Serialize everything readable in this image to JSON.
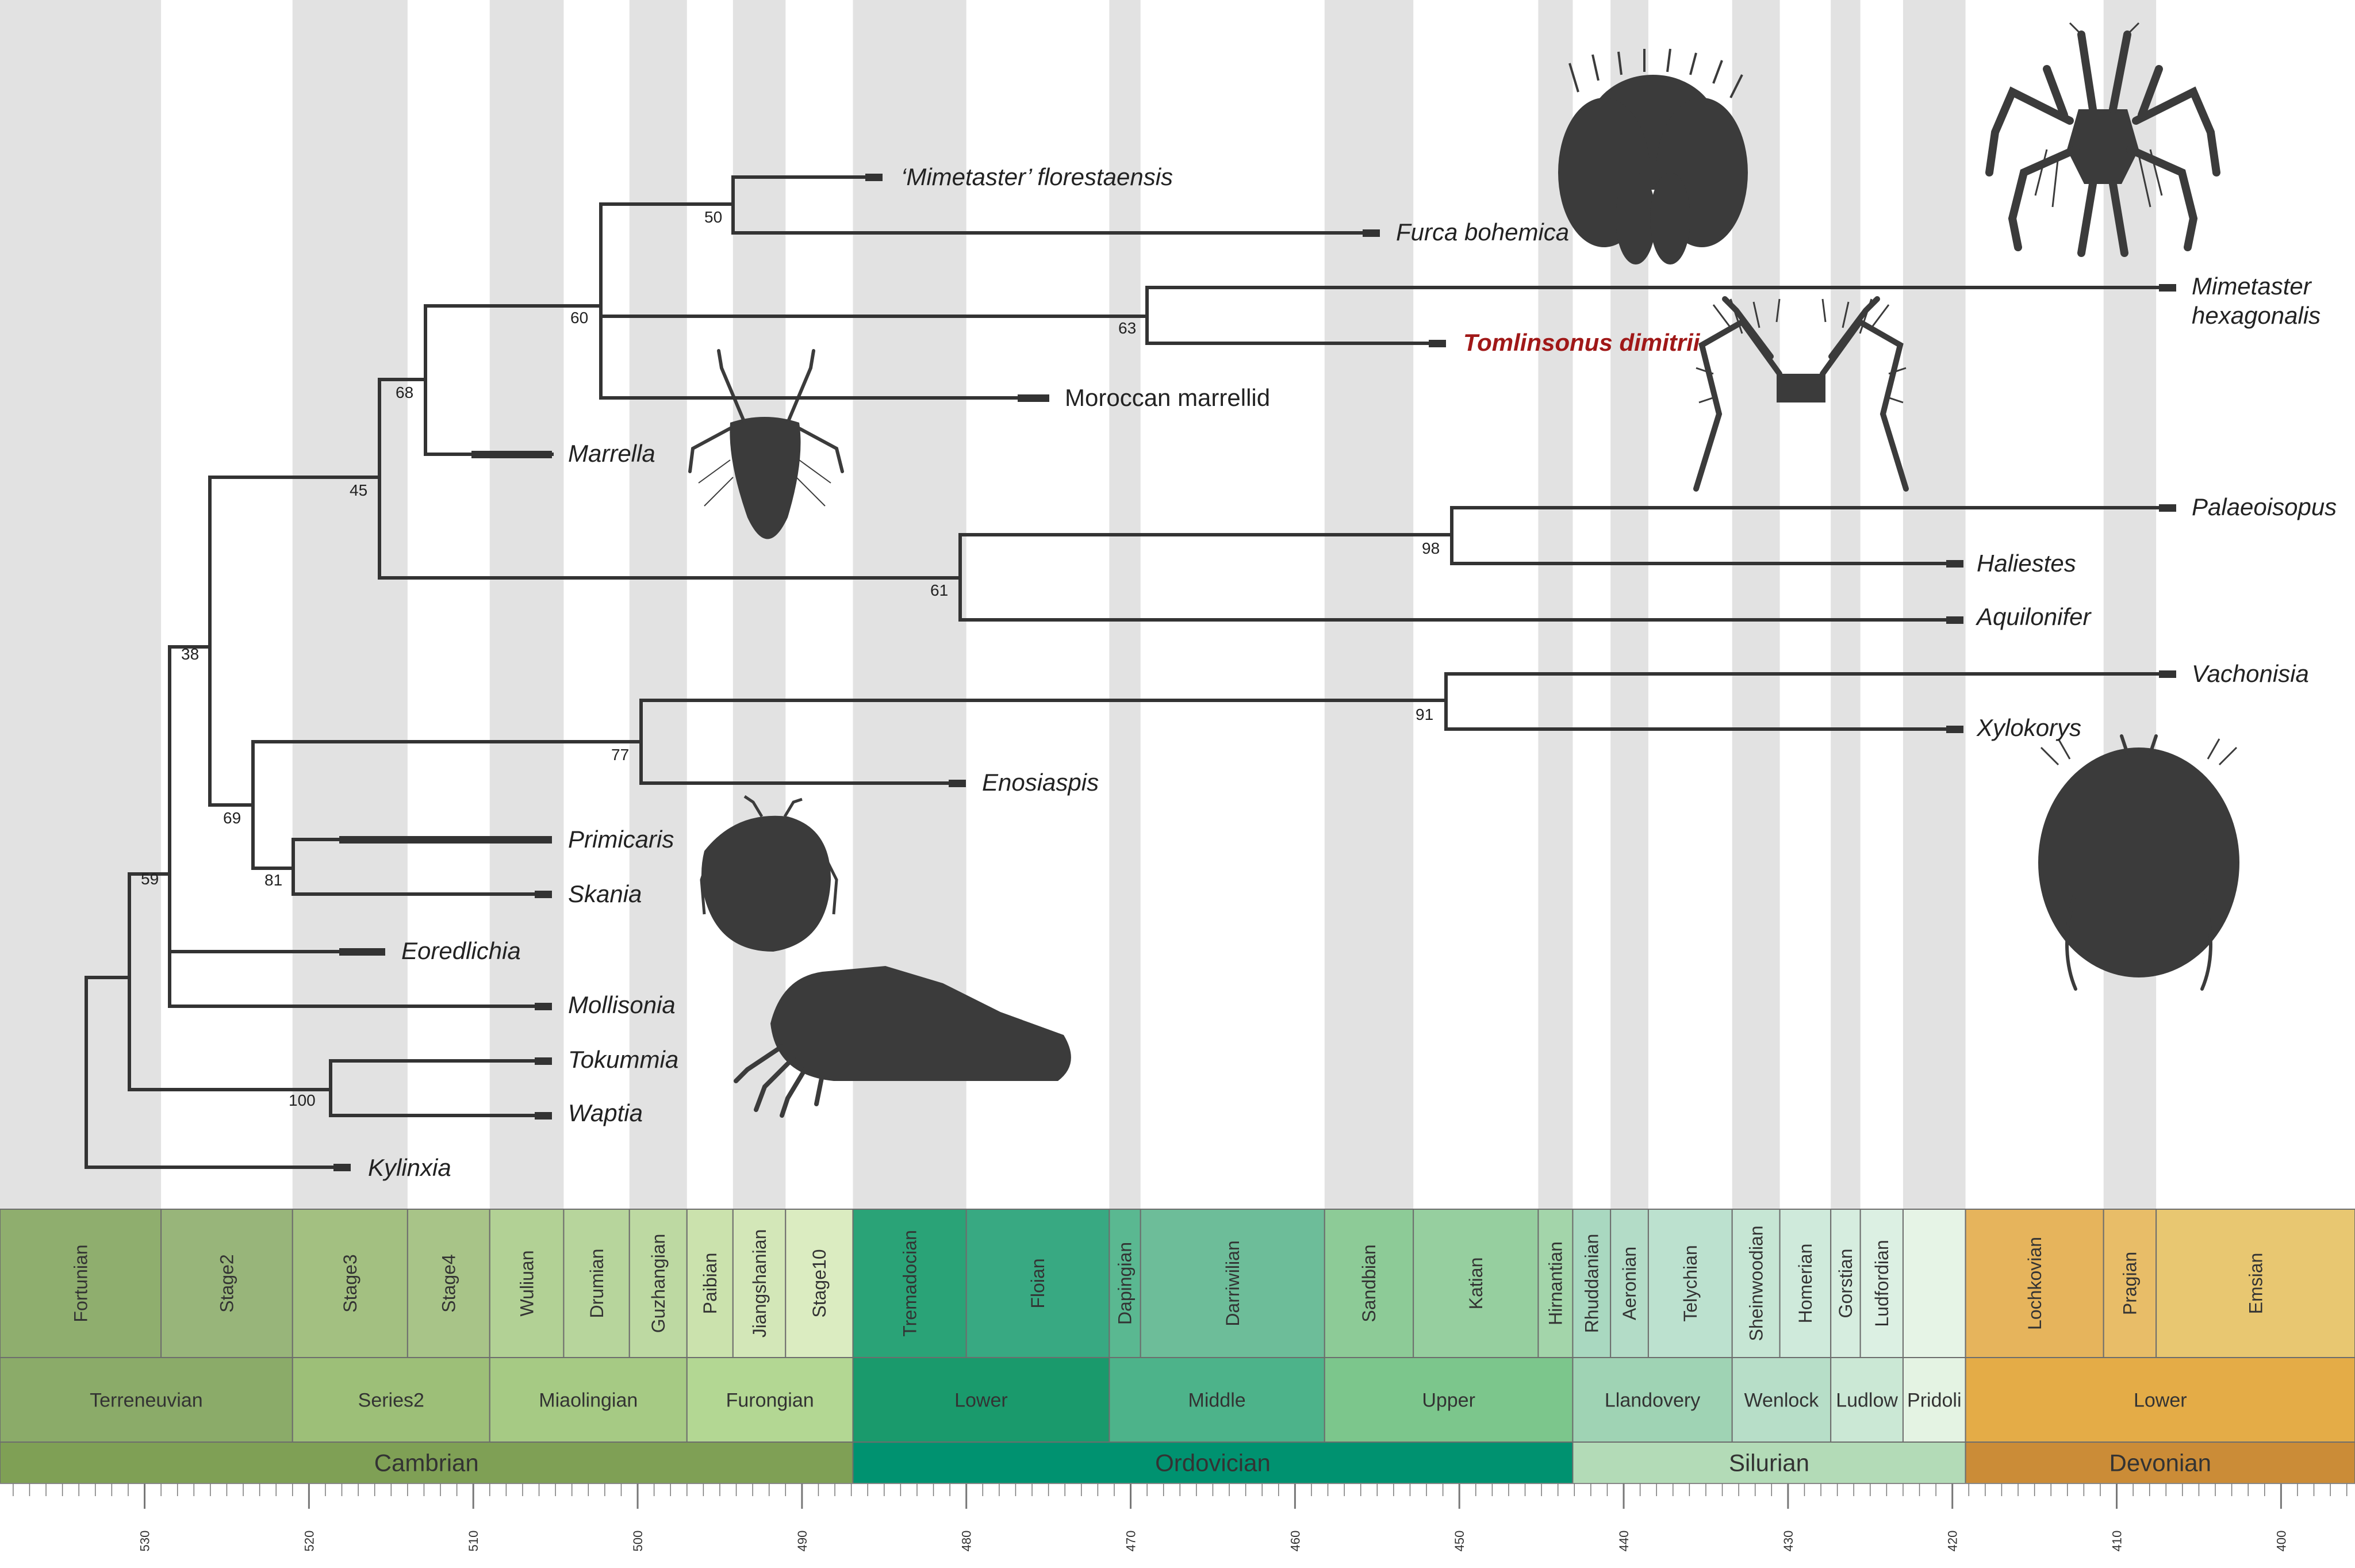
{
  "colors": {
    "branch": "#333333",
    "stripe": "#e2e2e2",
    "silhouette": "#3b3b3b",
    "highlight": "#a01818"
  },
  "taxa": [
    {
      "id": "mimetaster-florestaensis",
      "label": "‘Mimetaster’ florestaensis"
    },
    {
      "id": "furca-bohemica",
      "label": "Furca bohemica"
    },
    {
      "id": "mimetaster-hexagonalis-1",
      "label": "Mimetaster"
    },
    {
      "id": "mimetaster-hexagonalis-2",
      "label": "hexagonalis"
    },
    {
      "id": "tomlinsonus-dimitrii",
      "label": "Tomlinsonus dimitrii"
    },
    {
      "id": "moroccan-marrellid",
      "label": "Moroccan marrellid"
    },
    {
      "id": "marrella",
      "label": "Marrella"
    },
    {
      "id": "palaeoisopus",
      "label": "Palaeoisopus"
    },
    {
      "id": "haliestes",
      "label": "Haliestes"
    },
    {
      "id": "aquilonifer",
      "label": "Aquilonifer"
    },
    {
      "id": "vachonisia",
      "label": "Vachonisia"
    },
    {
      "id": "xylokorys",
      "label": "Xylokorys"
    },
    {
      "id": "enosiaspis",
      "label": "Enosiaspis"
    },
    {
      "id": "primicaris",
      "label": "Primicaris"
    },
    {
      "id": "skania",
      "label": "Skania"
    },
    {
      "id": "eoredlichia",
      "label": "Eoredlichia"
    },
    {
      "id": "mollisonia",
      "label": "Mollisonia"
    },
    {
      "id": "tokummia",
      "label": "Tokummia"
    },
    {
      "id": "waptia",
      "label": "Waptia"
    },
    {
      "id": "kylinxia",
      "label": "Kylinxia"
    }
  ],
  "support_values": [
    "50",
    "60",
    "63",
    "68",
    "45",
    "98",
    "61",
    "38",
    "91",
    "77",
    "69",
    "81",
    "59",
    "100"
  ],
  "time_scale": {
    "axis_min": 400,
    "axis_max": 538.8,
    "stages": [
      {
        "name": "Fortunian",
        "start": 538.8,
        "end": 529,
        "color": "#8fae6e"
      },
      {
        "name": "Stage2",
        "start": 529,
        "end": 521,
        "color": "#98b57a"
      },
      {
        "name": "Stage3",
        "start": 521,
        "end": 514,
        "color": "#a3c081"
      },
      {
        "name": "Stage4",
        "start": 514,
        "end": 509,
        "color": "#a8c488"
      },
      {
        "name": "Wuliuan",
        "start": 509,
        "end": 504.5,
        "color": "#b2d195"
      },
      {
        "name": "Drumian",
        "start": 504.5,
        "end": 500.5,
        "color": "#b7d59c"
      },
      {
        "name": "Guzhangian",
        "start": 500.5,
        "end": 497,
        "color": "#bdd9a2"
      },
      {
        "name": "Paibian",
        "start": 497,
        "end": 494.2,
        "color": "#cbe2ad"
      },
      {
        "name": "Jiangshanian",
        "start": 494.2,
        "end": 491,
        "color": "#d3e7b8"
      },
      {
        "name": "Stage10",
        "start": 491,
        "end": 486.9,
        "color": "#dbecc1"
      },
      {
        "name": "Tremadocian",
        "start": 486.9,
        "end": 480,
        "color": "#2aa377"
      },
      {
        "name": "Floian",
        "start": 480,
        "end": 471.3,
        "color": "#38a982"
      },
      {
        "name": "Dapingian",
        "start": 471.3,
        "end": 469.4,
        "color": "#5ab891"
      },
      {
        "name": "Darriwilian",
        "start": 469.4,
        "end": 458.2,
        "color": "#6dbd99"
      },
      {
        "name": "Sandbian",
        "start": 458.2,
        "end": 452.8,
        "color": "#8dcb97"
      },
      {
        "name": "Katian",
        "start": 452.8,
        "end": 445.2,
        "color": "#96cf9f"
      },
      {
        "name": "Hirnantian",
        "start": 445.2,
        "end": 443.1,
        "color": "#a3d5aa"
      },
      {
        "name": "Rhuddanian",
        "start": 443.1,
        "end": 440.8,
        "color": "#a9d8c0"
      },
      {
        "name": "Aeronian",
        "start": 440.8,
        "end": 438.5,
        "color": "#b3dcc7"
      },
      {
        "name": "Telychian",
        "start": 438.5,
        "end": 433.4,
        "color": "#bce1cf"
      },
      {
        "name": "Sheinwoodian",
        "start": 433.4,
        "end": 430.5,
        "color": "#c6e6d4"
      },
      {
        "name": "Homerian",
        "start": 430.5,
        "end": 427.4,
        "color": "#cfeadb"
      },
      {
        "name": "Gorstian",
        "start": 427.4,
        "end": 425.6,
        "color": "#d6eddf"
      },
      {
        "name": "Ludfordian",
        "start": 425.6,
        "end": 423,
        "color": "#dcf0e3"
      },
      {
        "name": "",
        "start": 423,
        "end": 419.2,
        "color": "#e6f4e6"
      },
      {
        "name": "Lochkovian",
        "start": 419.2,
        "end": 410.8,
        "color": "#e6b45c"
      },
      {
        "name": "Pragian",
        "start": 410.8,
        "end": 407.6,
        "color": "#e8bd68"
      },
      {
        "name": "Emsian",
        "start": 407.6,
        "end": 393.3,
        "color": "#e8c771"
      }
    ],
    "series": [
      {
        "name": "Terreneuvian",
        "start": 538.8,
        "end": 521,
        "color": "#8bab69"
      },
      {
        "name": "Series2",
        "start": 521,
        "end": 509,
        "color": "#9dbf78"
      },
      {
        "name": "Miaolingian",
        "start": 509,
        "end": 497,
        "color": "#a6ca84"
      },
      {
        "name": "Furongian",
        "start": 497,
        "end": 486.9,
        "color": "#b3d793"
      },
      {
        "name": "Lower",
        "start": 486.9,
        "end": 471.3,
        "color": "#1a9a6c"
      },
      {
        "name": "Middle",
        "start": 471.3,
        "end": 458.2,
        "color": "#4db38a"
      },
      {
        "name": "Upper",
        "start": 458.2,
        "end": 443.1,
        "color": "#7cc68c"
      },
      {
        "name": "Llandovery",
        "start": 443.1,
        "end": 433.4,
        "color": "#9fd3b4"
      },
      {
        "name": "Wenlock",
        "start": 433.4,
        "end": 427.4,
        "color": "#b7dec8"
      },
      {
        "name": "Ludlow",
        "start": 427.4,
        "end": 423,
        "color": "#cbe8d5"
      },
      {
        "name": "Pridoli",
        "start": 423,
        "end": 419.2,
        "color": "#e4f3e3"
      },
      {
        "name": "Lower",
        "start": 419.2,
        "end": 393.3,
        "color": "#e4ac47"
      }
    ],
    "periods": [
      {
        "name": "Cambrian",
        "start": 538.8,
        "end": 486.9,
        "color": "#7fa055"
      },
      {
        "name": "Ordovician",
        "start": 486.9,
        "end": 443.1,
        "color": "#009270"
      },
      {
        "name": "Silurian",
        "start": 443.1,
        "end": 419.2,
        "color": "#b3dbb7"
      },
      {
        "name": "Devonian",
        "start": 419.2,
        "end": 393.3,
        "color": "#cb8c37"
      }
    ],
    "tick_labels": [
      "530",
      "520",
      "510",
      "500",
      "490",
      "480",
      "470",
      "460",
      "450",
      "440",
      "430",
      "420",
      "410",
      "400"
    ]
  }
}
